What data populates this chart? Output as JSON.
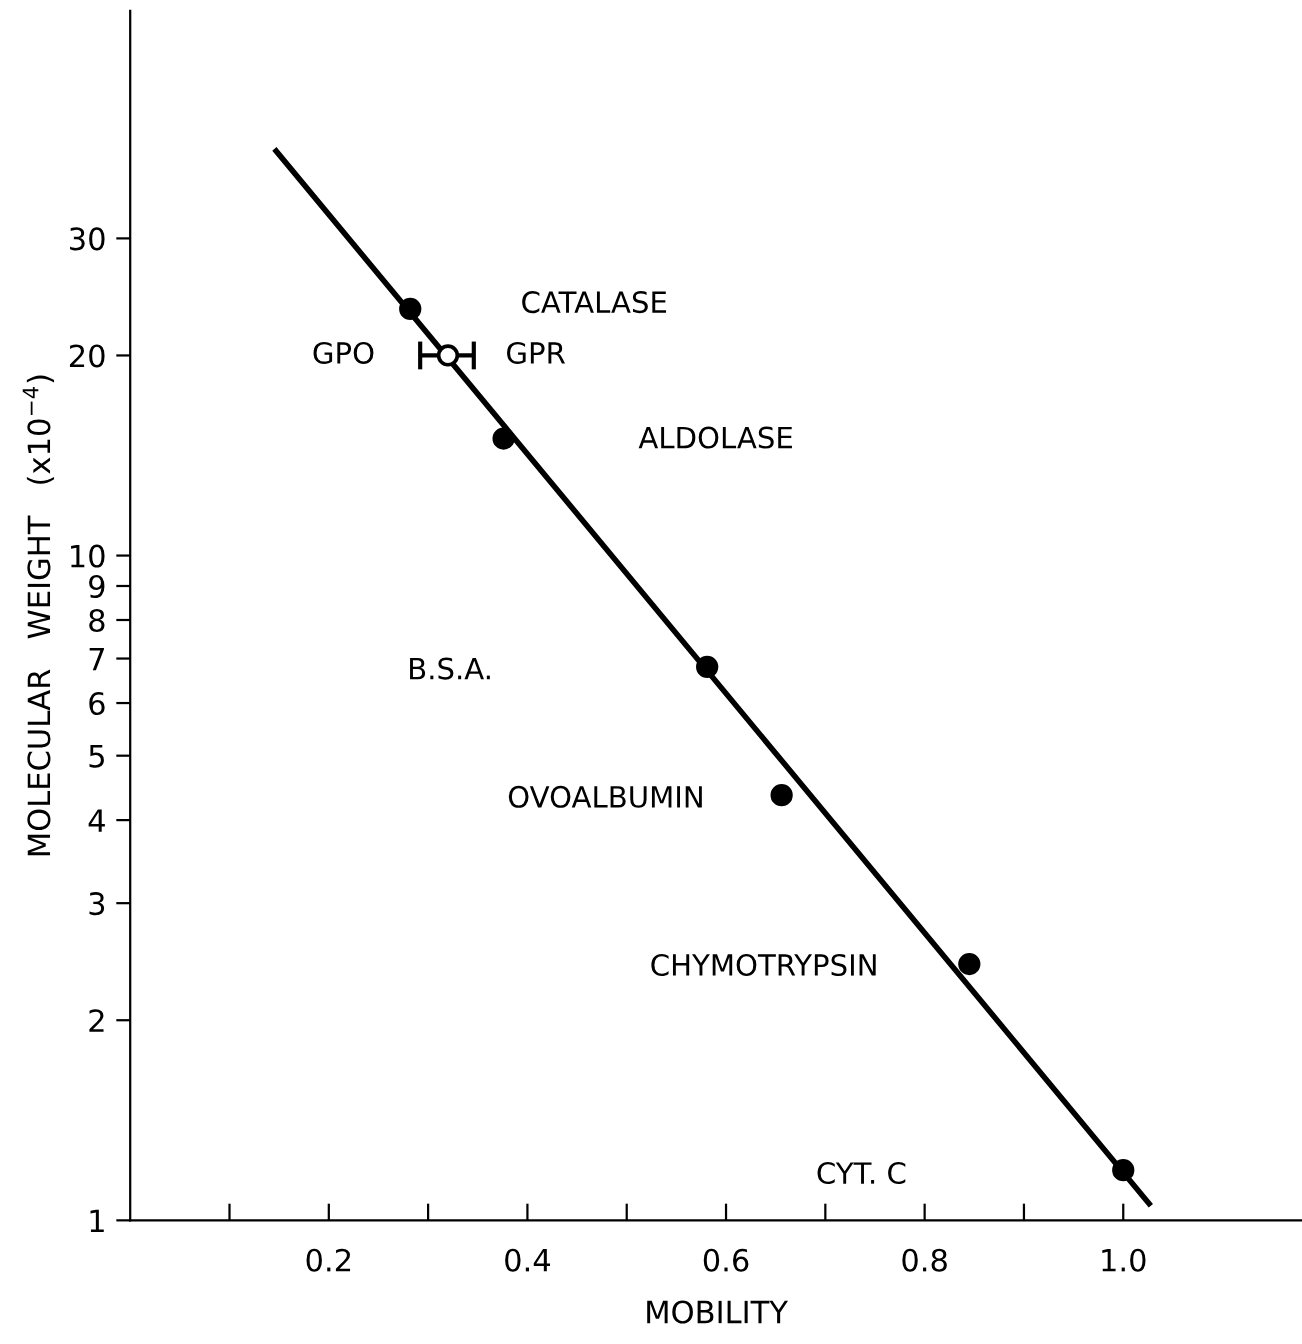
{
  "chart_data": {
    "type": "scatter",
    "xlabel": "MOBILITY",
    "ylabel": "MOLECULAR   WEIGHT   (x10$^{−4}$)",
    "log": "y",
    "xlim": [
      0,
      1.18
    ],
    "ylim": [
      1,
      66
    ],
    "xticks": [
      {
        "value": 0.1,
        "label": null
      },
      {
        "value": 0.2,
        "label": "0.2"
      },
      {
        "value": 0.3,
        "label": null
      },
      {
        "value": 0.4,
        "label": "0.4"
      },
      {
        "value": 0.5,
        "label": null
      },
      {
        "value": 0.6,
        "label": "0.6"
      },
      {
        "value": 0.7,
        "label": null
      },
      {
        "value": 0.8,
        "label": "0.8"
      },
      {
        "value": 0.9,
        "label": null
      },
      {
        "value": 1.0,
        "label": "1.0"
      }
    ],
    "yticks": [
      1,
      2,
      3,
      4,
      5,
      6,
      7,
      8,
      9,
      10,
      20,
      30
    ],
    "series": [
      {
        "color": "#000000",
        "marker": "circle",
        "x": [
          0.282,
          0.376,
          0.581,
          0.656,
          0.845,
          1.0
        ],
        "values": [
          23.5,
          15.0,
          6.8,
          4.36,
          2.43,
          1.19
        ]
      },
      {
        "color": "#ffffff",
        "marker": "circle",
        "x": [
          0.32
        ],
        "values": [
          20
        ],
        "xerrors": [
          [
            0.292,
            0.346
          ]
        ]
      },
      {
        "type": "line",
        "color": "#000000",
        "marker": "none",
        "line_style": "solid",
        "x": [
          0.147,
          1.026
        ],
        "values": [
          40.6,
          1.06
        ]
      }
    ],
    "annotations": [
      "CATALASE",
      "GPO",
      "GPR",
      "ALDOLASE",
      "B.S.A.",
      "OVOALBUMIN",
      "CHYMOTRYPSIN",
      "CYT. C"
    ]
  }
}
